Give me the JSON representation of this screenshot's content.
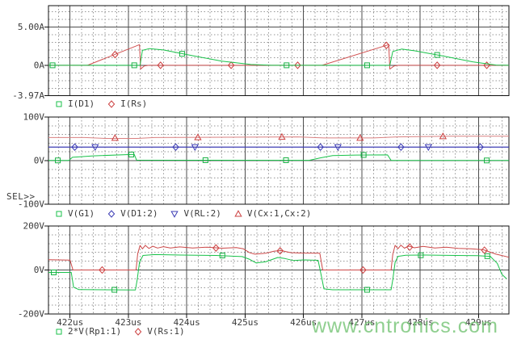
{
  "sel_indicator": "SEL>>",
  "watermark": "www.cntronics.com",
  "colors": {
    "trace_green": "#19c24a",
    "trace_red": "#d05050",
    "trace_salmon": "#d98080",
    "trace_blue": "#3c3cb4",
    "marker_red": "#cc4040",
    "grid_major": "#4d4d4d",
    "grid_minor": "#979797",
    "border": "#111111",
    "label": "#3a3a3a",
    "background": "#ffffff"
  },
  "x_axis": {
    "unit": "us",
    "xlim": [
      421.63,
      429.52
    ],
    "major_ticks": [
      422,
      423,
      424,
      425,
      426,
      427,
      428,
      429
    ],
    "tick_labels": [
      "422us",
      "423us",
      "424us",
      "425us",
      "426us",
      "427us",
      "428us",
      "429us"
    ],
    "minor_step": 0.2
  },
  "chart_data": [
    {
      "type": "line",
      "title": "",
      "ylim": [
        -3.97,
        7.8
      ],
      "y_axis_labels": [
        {
          "value": 5,
          "label": "5.00A"
        },
        {
          "value": 0,
          "label": "0A"
        },
        {
          "value": -3.97,
          "label": "-3.97A"
        }
      ],
      "y_solid_lines": [
        5,
        0
      ],
      "y_minor_step": 1,
      "legend": [
        {
          "label": "I(D1)",
          "marker": "square",
          "color": "#19c24a"
        },
        {
          "label": "I(Rs)",
          "marker": "diamond",
          "color": "#cc4040"
        }
      ],
      "series": [
        {
          "name": "I(Rs)",
          "color": "#d05050",
          "marker": "diamond",
          "marker_color": "#cc4040",
          "points": [
            [
              421.63,
              0
            ],
            [
              422.3,
              0
            ],
            [
              423.19,
              2.7
            ],
            [
              423.21,
              -0.5
            ],
            [
              423.27,
              -0.1
            ],
            [
              423.35,
              0
            ],
            [
              426.32,
              0
            ],
            [
              427.46,
              2.7
            ],
            [
              427.48,
              -0.5
            ],
            [
              427.55,
              -0.1
            ],
            [
              427.63,
              0
            ],
            [
              429.52,
              0
            ]
          ],
          "marker_points": [
            [
              422.77,
              1.4
            ],
            [
              423.55,
              0
            ],
            [
              424.76,
              0
            ],
            [
              425.9,
              0
            ],
            [
              427.42,
              2.6
            ],
            [
              428.29,
              0
            ],
            [
              429.14,
              0
            ]
          ]
        },
        {
          "name": "I(D1)",
          "color": "#19c24a",
          "marker": "square",
          "marker_color": "#19b245",
          "points": [
            [
              421.63,
              0
            ],
            [
              423.2,
              0
            ],
            [
              423.24,
              1.95
            ],
            [
              423.36,
              2.18
            ],
            [
              423.6,
              2.0
            ],
            [
              424.1,
              1.25
            ],
            [
              424.6,
              0.55
            ],
            [
              425.1,
              0.1
            ],
            [
              425.45,
              0
            ],
            [
              427.48,
              0
            ],
            [
              427.53,
              1.8
            ],
            [
              427.68,
              2.12
            ],
            [
              427.9,
              1.9
            ],
            [
              428.4,
              1.2
            ],
            [
              428.9,
              0.45
            ],
            [
              429.3,
              0.03
            ],
            [
              429.52,
              0
            ]
          ],
          "marker_points": [
            [
              421.7,
              0
            ],
            [
              423.1,
              0
            ],
            [
              423.92,
              1.5
            ],
            [
              425.71,
              0
            ],
            [
              427.09,
              0
            ],
            [
              428.29,
              1.35
            ]
          ]
        }
      ]
    },
    {
      "type": "line",
      "title": "",
      "ylim": [
        -100,
        100
      ],
      "y_axis_labels": [
        {
          "value": 100,
          "label": "100V"
        },
        {
          "value": 0,
          "label": "0V"
        },
        {
          "value": -100,
          "label": "-100V"
        }
      ],
      "y_solid_lines": [
        0
      ],
      "y_minor_step": 20,
      "legend": [
        {
          "label": "V(G1)",
          "marker": "square",
          "color": "#19c24a"
        },
        {
          "label": "V(D1:2)",
          "marker": "diamond",
          "color": "#3c3cb4"
        },
        {
          "label": "V(RL:2)",
          "marker": "triangle_down",
          "color": "#3c3cb4"
        },
        {
          "label": "V(Cx:1,Cx:2)",
          "marker": "triangle_up",
          "color": "#cc4040"
        }
      ],
      "series": [
        {
          "name": "V(Cx:1,Cx:2)",
          "color": "#d98080",
          "marker": "triangle_up",
          "marker_color": "#cc4040",
          "points": [
            [
              421.63,
              53
            ],
            [
              422.25,
              53
            ],
            [
              422.6,
              51
            ],
            [
              423.15,
              51
            ],
            [
              423.45,
              53
            ],
            [
              424.3,
              53.5
            ],
            [
              425.9,
              54.5
            ],
            [
              426.35,
              52
            ],
            [
              427.2,
              52
            ],
            [
              427.6,
              54.5
            ],
            [
              428.5,
              56
            ],
            [
              429.52,
              56
            ]
          ],
          "marker_points": [
            [
              422.77,
              52
            ],
            [
              424.19,
              53.4
            ],
            [
              425.63,
              54.4
            ],
            [
              426.97,
              52
            ],
            [
              428.39,
              55.8
            ]
          ]
        },
        {
          "name": "V(RL:2)",
          "color": "#3c3cb4",
          "marker": "triangle_down",
          "marker_color": "#3c3cb4",
          "points": [
            [
              421.63,
              31
            ],
            [
              429.52,
              31
            ]
          ],
          "marker_points": [
            [
              422.43,
              31
            ],
            [
              424.14,
              31
            ],
            [
              426.59,
              31
            ],
            [
              428.14,
              31
            ]
          ]
        },
        {
          "name": "V(D1:2)",
          "color": "#3c3cb4",
          "marker": "diamond",
          "marker_color": "#3c3cb4",
          "points": [
            [
              421.63,
              31
            ],
            [
              429.52,
              31
            ]
          ],
          "marker_points": [
            [
              422.08,
              31
            ],
            [
              423.81,
              31
            ],
            [
              426.29,
              31
            ],
            [
              427.67,
              31
            ],
            [
              429.03,
              31
            ]
          ]
        },
        {
          "name": "V(G1)",
          "color": "#19c24a",
          "marker": "square",
          "marker_color": "#19b245",
          "points": [
            [
              421.63,
              0.5
            ],
            [
              421.98,
              0.5
            ],
            [
              422.04,
              7.5
            ],
            [
              422.4,
              11
            ],
            [
              423.05,
              14
            ],
            [
              423.1,
              14.2
            ],
            [
              423.14,
              1.2
            ],
            [
              424.2,
              1.0
            ],
            [
              426.1,
              0.8
            ],
            [
              426.28,
              6
            ],
            [
              426.5,
              11.5
            ],
            [
              426.9,
              12.8
            ],
            [
              427.44,
              13.2
            ],
            [
              427.5,
              0.6
            ],
            [
              429.52,
              0.4
            ]
          ],
          "marker_points": [
            [
              421.79,
              0.5
            ],
            [
              423.05,
              14
            ],
            [
              424.32,
              1
            ],
            [
              425.7,
              0.9
            ],
            [
              427.03,
              13
            ],
            [
              429.14,
              0.4
            ]
          ]
        }
      ]
    },
    {
      "type": "line",
      "title": "",
      "ylim": [
        -200,
        200
      ],
      "y_axis_labels": [
        {
          "value": 200,
          "label": "200V"
        },
        {
          "value": 0,
          "label": "0V"
        },
        {
          "value": -200,
          "label": "-200V"
        }
      ],
      "y_solid_lines": [
        0
      ],
      "y_minor_step": 40,
      "legend": [
        {
          "label": "2*V(Rp1:1)",
          "marker": "square",
          "color": "#19c24a"
        },
        {
          "label": "V(Rs:1)",
          "marker": "diamond",
          "color": "#cc4040"
        }
      ],
      "series": [
        {
          "name": "V(Rs:1)",
          "color": "#cc4848",
          "marker": "diamond",
          "marker_color": "#cc4040",
          "points": [
            [
              421.63,
              47
            ],
            [
              422.0,
              45
            ],
            [
              422.05,
              0
            ],
            [
              423.13,
              0
            ],
            [
              423.16,
              75
            ],
            [
              423.2,
              112
            ],
            [
              423.24,
              96
            ],
            [
              423.29,
              112
            ],
            [
              423.35,
              98
            ],
            [
              423.42,
              108
            ],
            [
              423.5,
              100
            ],
            [
              423.6,
              106
            ],
            [
              423.72,
              100
            ],
            [
              423.88,
              105
            ],
            [
              424.1,
              100
            ],
            [
              424.35,
              104
            ],
            [
              424.6,
              99
            ],
            [
              424.85,
              102
            ],
            [
              424.97,
              96
            ],
            [
              425.08,
              78
            ],
            [
              425.17,
              72
            ],
            [
              425.35,
              76
            ],
            [
              425.5,
              86
            ],
            [
              425.62,
              88
            ],
            [
              425.78,
              79
            ],
            [
              425.95,
              77
            ],
            [
              426.28,
              76
            ],
            [
              426.33,
              0
            ],
            [
              427.5,
              0
            ],
            [
              427.53,
              70
            ],
            [
              427.57,
              112
            ],
            [
              427.62,
              97
            ],
            [
              427.67,
              113
            ],
            [
              427.73,
              99
            ],
            [
              427.8,
              109
            ],
            [
              427.9,
              101
            ],
            [
              428.05,
              107
            ],
            [
              428.25,
              100
            ],
            [
              428.45,
              104
            ],
            [
              428.65,
              98
            ],
            [
              428.87,
              96
            ],
            [
              429.08,
              92
            ],
            [
              429.3,
              72
            ],
            [
              429.52,
              58
            ]
          ],
          "marker_points": [
            [
              422.55,
              0
            ],
            [
              424.5,
              100
            ],
            [
              425.6,
              87
            ],
            [
              427.02,
              0
            ],
            [
              427.82,
              104
            ],
            [
              429.1,
              90
            ]
          ]
        },
        {
          "name": "2*V(Rp1:1)",
          "color": "#19c24a",
          "marker": "square",
          "marker_color": "#19b245",
          "points": [
            [
              421.63,
              -11
            ],
            [
              422.02,
              -11
            ],
            [
              422.06,
              -78
            ],
            [
              422.15,
              -89
            ],
            [
              423.12,
              -91
            ],
            [
              423.15,
              -45
            ],
            [
              423.19,
              35
            ],
            [
              423.25,
              66
            ],
            [
              423.45,
              70
            ],
            [
              423.9,
              68
            ],
            [
              424.5,
              66
            ],
            [
              424.95,
              61
            ],
            [
              425.08,
              48
            ],
            [
              425.19,
              32
            ],
            [
              425.35,
              37
            ],
            [
              425.56,
              57
            ],
            [
              425.68,
              52
            ],
            [
              425.83,
              43
            ],
            [
              426.0,
              46
            ],
            [
              426.25,
              44
            ],
            [
              426.3,
              -20
            ],
            [
              426.35,
              -86
            ],
            [
              426.5,
              -90
            ],
            [
              427.5,
              -90
            ],
            [
              427.53,
              -45
            ],
            [
              427.57,
              35
            ],
            [
              427.62,
              62
            ],
            [
              427.75,
              67
            ],
            [
              428.1,
              68
            ],
            [
              428.6,
              66
            ],
            [
              428.98,
              65
            ],
            [
              429.2,
              62
            ],
            [
              429.32,
              30
            ],
            [
              429.4,
              -20
            ],
            [
              429.48,
              -40
            ]
          ],
          "marker_points": [
            [
              421.72,
              -11
            ],
            [
              422.76,
              -90
            ],
            [
              424.61,
              66
            ],
            [
              427.09,
              -90
            ],
            [
              428.01,
              67
            ],
            [
              429.15,
              63
            ]
          ]
        }
      ]
    }
  ]
}
